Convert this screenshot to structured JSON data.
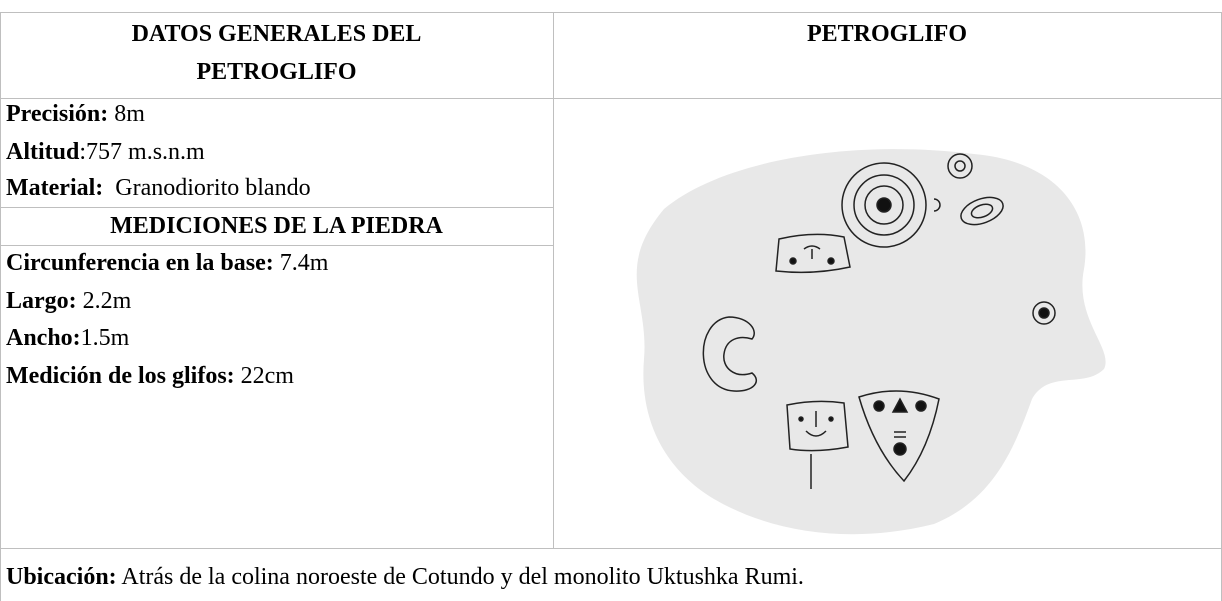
{
  "header": {
    "left": "DATOS GENERALES DEL PETROGLIFO",
    "right": "PETROGLIFO"
  },
  "general": [
    {
      "label": "Precisión:",
      "value": "8m"
    },
    {
      "label": "Altitud",
      "value": ":757 m.s.n.m"
    },
    {
      "label": "Material:",
      "value": "Granodiorito blando"
    }
  ],
  "measurements_title": "MEDICIONES DE LA PIEDRA",
  "measurements": [
    {
      "label": "Circunferencia en la base:",
      "value": "7.4m"
    },
    {
      "label": "Largo:",
      "value": "2.2m"
    },
    {
      "label": "Ancho:",
      "value": "1.5m"
    },
    {
      "label": "Medición de los glifos:",
      "value": "22cm"
    }
  ],
  "location": {
    "label": "Ubicación:",
    "value": "Atrás de la colina noroeste de Cotundo y del monolito Uktushka Rumi."
  }
}
